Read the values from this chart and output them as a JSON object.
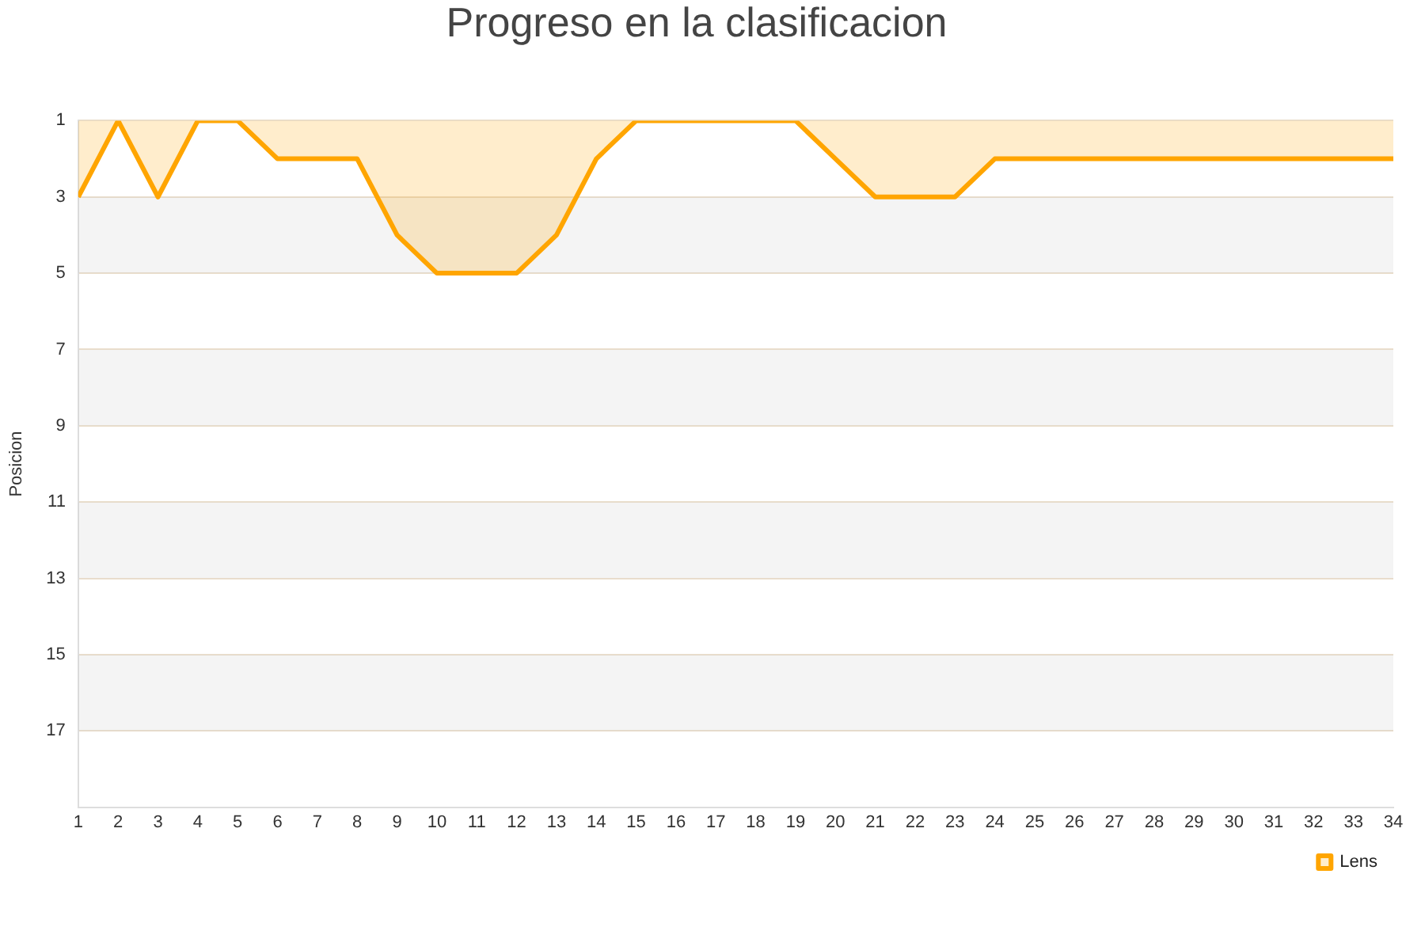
{
  "chart_data": {
    "type": "area",
    "title": "Progreso en la clasificacion",
    "ylabel": "Posicion",
    "x": [
      1,
      2,
      3,
      4,
      5,
      6,
      7,
      8,
      9,
      10,
      11,
      12,
      13,
      14,
      15,
      16,
      17,
      18,
      19,
      20,
      21,
      22,
      23,
      24,
      25,
      26,
      27,
      28,
      29,
      30,
      31,
      32,
      33,
      34
    ],
    "series": [
      {
        "name": "Lens",
        "color": "#ffa500",
        "values": [
          3,
          1,
          3,
          1,
          1,
          2,
          2,
          2,
          4,
          5,
          5,
          5,
          4,
          2,
          1,
          1,
          1,
          1,
          1,
          2,
          3,
          3,
          3,
          2,
          2,
          2,
          2,
          2,
          2,
          2,
          2,
          2,
          2,
          2
        ]
      }
    ],
    "xlim": [
      1,
      34
    ],
    "xticks": [
      1,
      2,
      3,
      4,
      5,
      6,
      7,
      8,
      9,
      10,
      11,
      12,
      13,
      14,
      15,
      16,
      17,
      18,
      19,
      20,
      21,
      22,
      23,
      24,
      25,
      26,
      27,
      28,
      29,
      30,
      31,
      32,
      33,
      34
    ],
    "ylim": [
      19,
      1
    ],
    "yticks": [
      1,
      3,
      5,
      7,
      9,
      11,
      13,
      15,
      17
    ],
    "grid": "y",
    "legend": "bottom right",
    "marker": "none",
    "line_style": "solid"
  }
}
